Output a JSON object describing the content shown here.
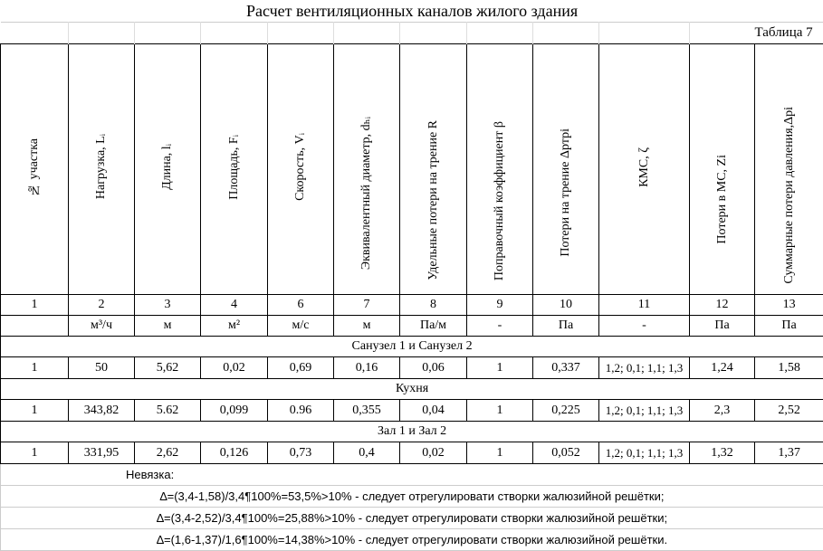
{
  "title": "Расчет вентиляционных каналов жилого здания",
  "table_label": "Таблица 7",
  "headers": [
    "№ участка",
    "Нагрузка, Lᵢ",
    "Длина, lᵢ",
    "Площадь, Fᵢ",
    "Скорость, Vᵢ",
    "Эквивалентный диаметр, dₕᵢ",
    "Удельные потери на трение R",
    "Поправочный коэффициент β",
    "Потери на трение Δртрi",
    "КМС, ζ",
    "Потери в МС, Zi",
    "Суммарные потери давления,Δрi"
  ],
  "col_numbers": [
    "1",
    "2",
    "3",
    "4",
    "6",
    "7",
    "8",
    "9",
    "10",
    "11",
    "12",
    "13"
  ],
  "units": [
    "",
    "м³/ч",
    "м",
    "м²",
    "м/с",
    "м",
    "Па/м",
    "-",
    "Па",
    "-",
    "Па",
    "Па"
  ],
  "sections": [
    {
      "name": "Санузел 1 и Санузел 2",
      "row": [
        "1",
        "50",
        "5,62",
        "0,02",
        "0,69",
        "0,16",
        "0,06",
        "1",
        "0,337",
        "1,2; 0,1; 1,1; 1,3",
        "1,24",
        "1,58"
      ]
    },
    {
      "name": "Кухня",
      "row": [
        "1",
        "343,82",
        "5.62",
        "0,099",
        "0.96",
        "0,355",
        "0,04",
        "1",
        "0,225",
        "1,2; 0,1; 1,1; 1,3",
        "2,3",
        "2,52"
      ]
    },
    {
      "name": "Зал 1 и Зал 2",
      "row": [
        "1",
        "331,95",
        "2,62",
        "0,126",
        "0,73",
        "0,4",
        "0,02",
        "1",
        "0,052",
        "1,2; 0,1; 1,1; 1,3",
        "1,32",
        "1,37"
      ]
    }
  ],
  "footer": {
    "label": "Невязка:",
    "lines": [
      "∆=(3,4-1,58)/3,4¶100%=53,5%>10% - следует отрегулировати створки жалюзийной решётки;",
      "∆=(3,4-2,52)/3,4¶100%=25,88%>10% - следует отрегулировати створки жалюзийной решётки;",
      "∆=(1,6-1,37)/1,6¶100%=14,38%>10% - следует отрегулировати створки жалюзийной решётки."
    ]
  }
}
